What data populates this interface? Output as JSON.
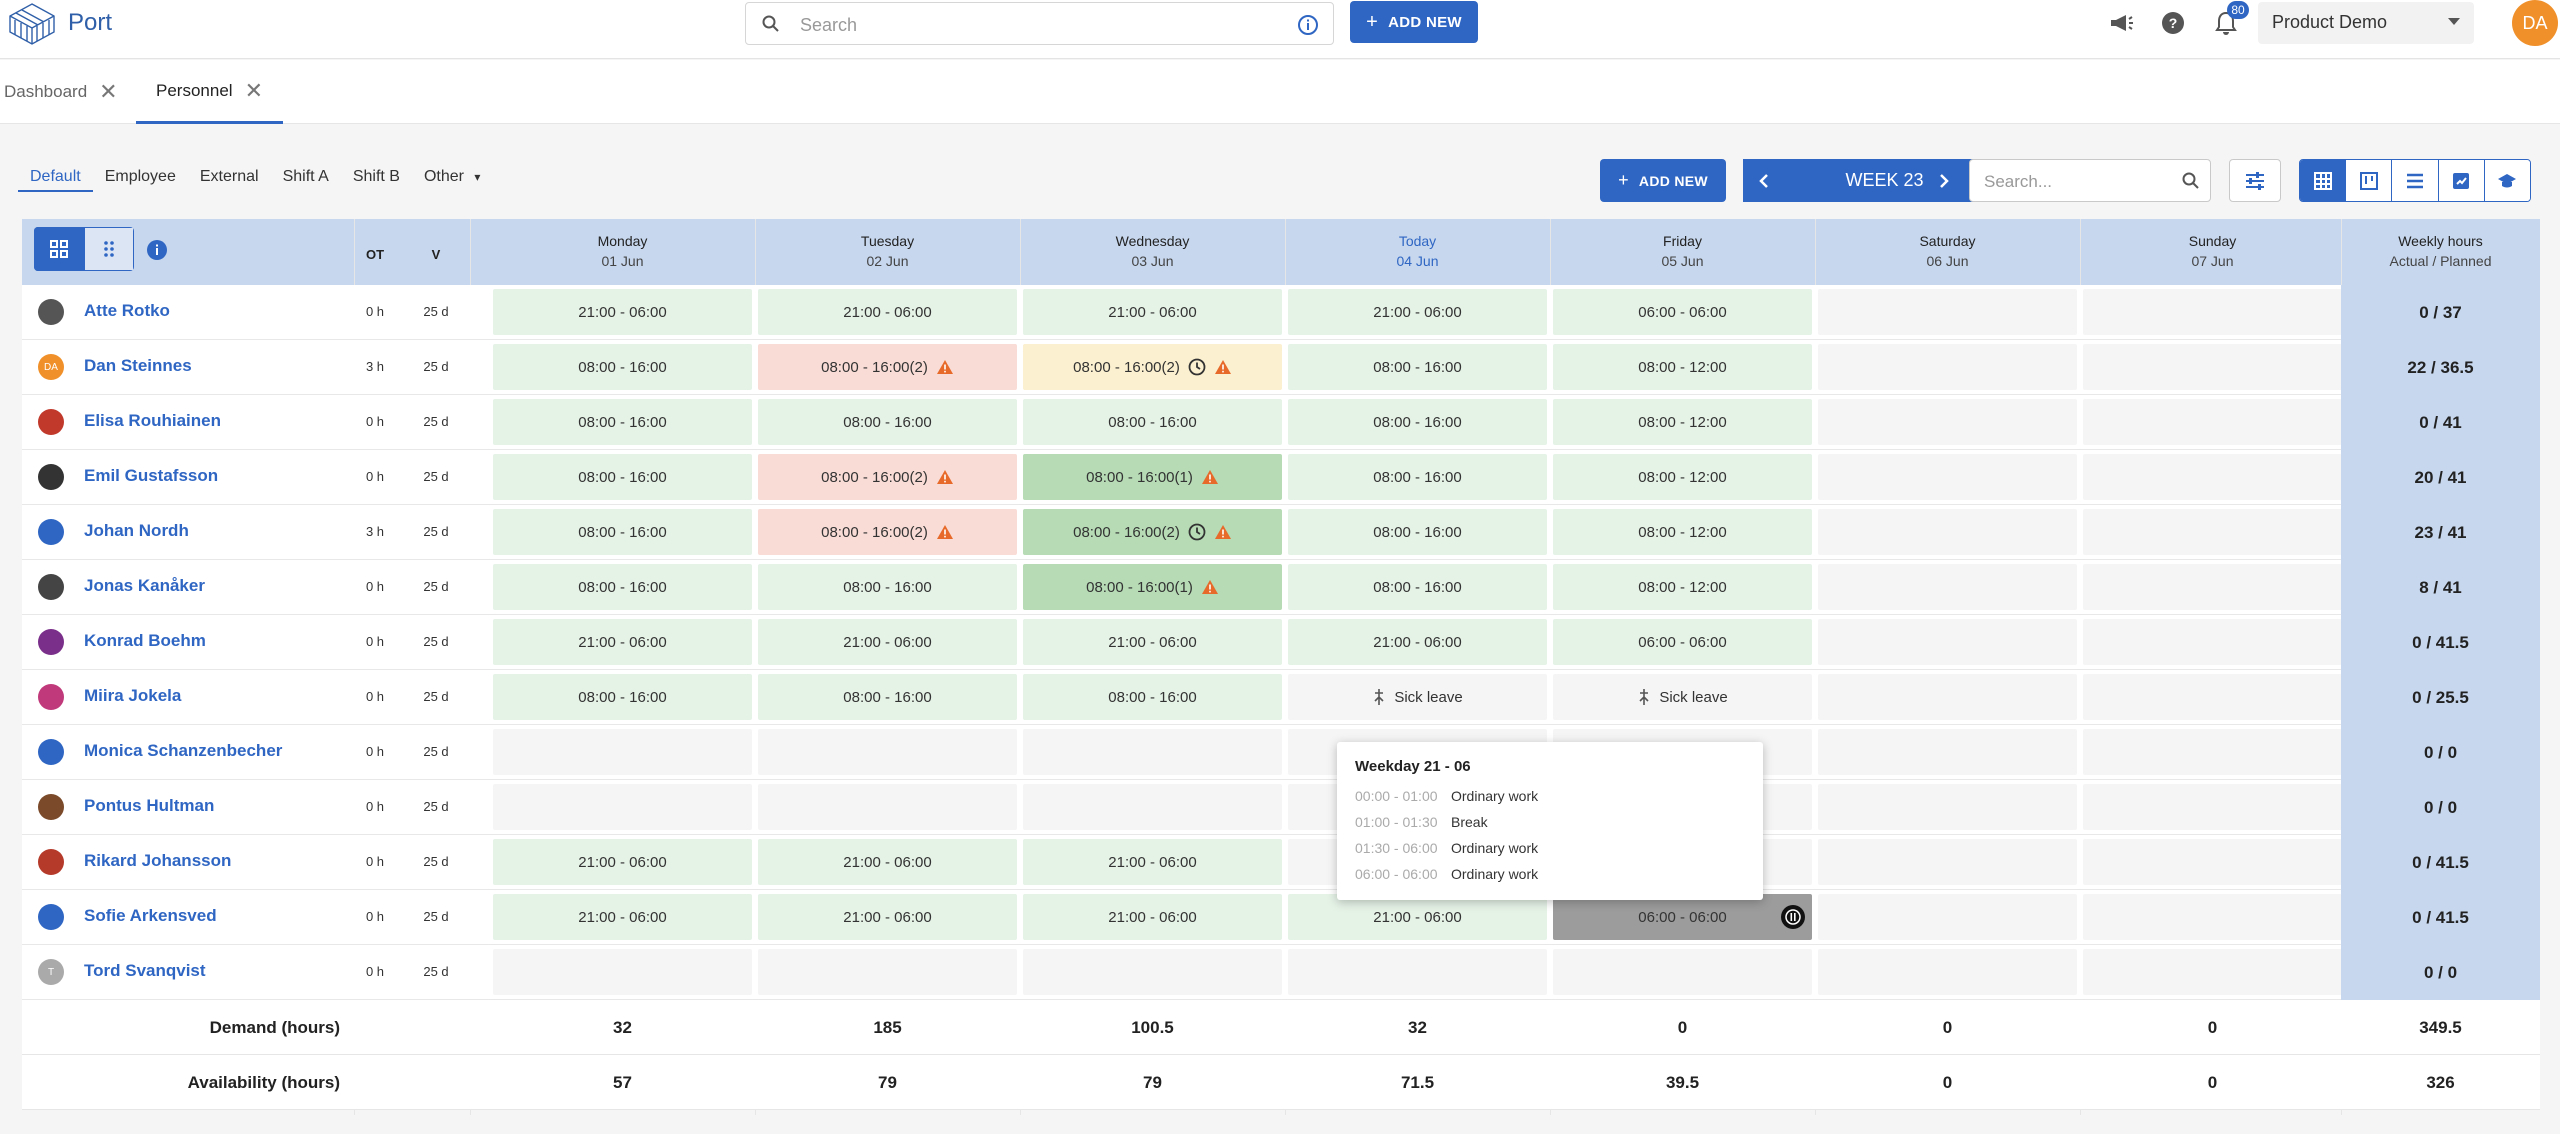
{
  "app": {
    "brand": "Port",
    "search_placeholder": "Search",
    "add_new": "ADD NEW",
    "notifications": "80",
    "product": "Product Demo",
    "user_initials": "DA"
  },
  "tabs": [
    {
      "label": "Dashboard"
    },
    {
      "label": "Personnel"
    }
  ],
  "filters": [
    "Default",
    "Employee",
    "External",
    "Shift A",
    "Shift B",
    "Other"
  ],
  "toolbar": {
    "add_new": "ADD NEW",
    "week": "WEEK 23",
    "search_placeholder": "Search..."
  },
  "header": {
    "ot": "OT",
    "v": "V",
    "days": [
      {
        "name": "Monday",
        "date": "01 Jun"
      },
      {
        "name": "Tuesday",
        "date": "02 Jun"
      },
      {
        "name": "Wednesday",
        "date": "03 Jun"
      },
      {
        "name": "Today",
        "date": "04 Jun"
      },
      {
        "name": "Friday",
        "date": "05 Jun"
      },
      {
        "name": "Saturday",
        "date": "06 Jun"
      },
      {
        "name": "Sunday",
        "date": "07 Jun"
      }
    ],
    "weekly_title": "Weekly hours",
    "weekly_sub": "Actual / Planned"
  },
  "rows": [
    {
      "name": "Atte Rotko",
      "ot": "0 h",
      "v": "25 d",
      "weekly": "0 / 37",
      "cells": [
        "21:00 - 06:00",
        "21:00 - 06:00",
        "21:00 - 06:00",
        "21:00 - 06:00",
        "06:00 - 06:00",
        "",
        ""
      ]
    },
    {
      "name": "Dan Steinnes",
      "ot": "3 h",
      "v": "25 d",
      "weekly": "22 / 36.5",
      "cells": [
        "08:00 - 16:00",
        "08:00 - 16:00(2)",
        "08:00 - 16:00(2)",
        "08:00 - 16:00",
        "08:00 - 12:00",
        "",
        ""
      ]
    },
    {
      "name": "Elisa Rouhiainen",
      "ot": "0 h",
      "v": "25 d",
      "weekly": "0 / 41",
      "cells": [
        "08:00 - 16:00",
        "08:00 - 16:00",
        "08:00 - 16:00",
        "08:00 - 16:00",
        "08:00 - 12:00",
        "",
        ""
      ]
    },
    {
      "name": "Emil Gustafsson",
      "ot": "0 h",
      "v": "25 d",
      "weekly": "20 / 41",
      "cells": [
        "08:00 - 16:00",
        "08:00 - 16:00(2)",
        "08:00 - 16:00(1)",
        "08:00 - 16:00",
        "08:00 - 12:00",
        "",
        ""
      ]
    },
    {
      "name": "Johan Nordh",
      "ot": "3 h",
      "v": "25 d",
      "weekly": "23 / 41",
      "cells": [
        "08:00 - 16:00",
        "08:00 - 16:00(2)",
        "08:00 - 16:00(2)",
        "08:00 - 16:00",
        "08:00 - 12:00",
        "",
        ""
      ]
    },
    {
      "name": "Jonas Kanåker",
      "ot": "0 h",
      "v": "25 d",
      "weekly": "8 / 41",
      "cells": [
        "08:00 - 16:00",
        "08:00 - 16:00",
        "08:00 - 16:00(1)",
        "08:00 - 16:00",
        "08:00 - 12:00",
        "",
        ""
      ]
    },
    {
      "name": "Konrad Boehm",
      "ot": "0 h",
      "v": "25 d",
      "weekly": "0 / 41.5",
      "cells": [
        "21:00 - 06:00",
        "21:00 - 06:00",
        "21:00 - 06:00",
        "21:00 - 06:00",
        "06:00 - 06:00",
        "",
        ""
      ]
    },
    {
      "name": "Miira Jokela",
      "ot": "0 h",
      "v": "25 d",
      "weekly": "0 / 25.5",
      "cells": [
        "08:00 - 16:00",
        "08:00 - 16:00",
        "08:00 - 16:00",
        "Sick leave",
        "Sick leave",
        "",
        ""
      ]
    },
    {
      "name": "Monica Schanzenbecher",
      "ot": "0 h",
      "v": "25 d",
      "weekly": "0 / 0",
      "cells": [
        "",
        "",
        "",
        "",
        "",
        "",
        ""
      ]
    },
    {
      "name": "Pontus Hultman",
      "ot": "0 h",
      "v": "25 d",
      "weekly": "0 / 0",
      "cells": [
        "",
        "",
        "",
        "",
        "",
        "",
        ""
      ]
    },
    {
      "name": "Rikard Johansson",
      "ot": "0 h",
      "v": "25 d",
      "weekly": "0 / 41.5",
      "cells": [
        "21:00 - 06:00",
        "21:00 - 06:00",
        "21:00 - 06:00",
        "",
        "",
        "",
        ""
      ]
    },
    {
      "name": "Sofie Arkensved",
      "ot": "0 h",
      "v": "25 d",
      "weekly": "0 / 41.5",
      "cells": [
        "21:00 - 06:00",
        "21:00 - 06:00",
        "21:00 - 06:00",
        "21:00 - 06:00",
        "06:00 - 06:00",
        "",
        ""
      ]
    },
    {
      "name": "Tord Svanqvist",
      "ot": "0 h",
      "v": "25 d",
      "weekly": "0 / 0",
      "cells": [
        "",
        "",
        "",
        "",
        "",
        "",
        ""
      ]
    }
  ],
  "footer": {
    "demand_label": "Demand (hours)",
    "demand": [
      "32",
      "185",
      "100.5",
      "32",
      "0",
      "0",
      "0",
      "349.5"
    ],
    "availability_label": "Availability (hours)",
    "availability": [
      "57",
      "79",
      "79",
      "71.5",
      "39.5",
      "0",
      "0",
      "326"
    ]
  },
  "tooltip": {
    "title": "Weekday 21 - 06",
    "lines": [
      {
        "time": "00:00 - 01:00",
        "kind": "Ordinary work"
      },
      {
        "time": "01:00 - 01:30",
        "kind": "Break"
      },
      {
        "time": "01:30 - 06:00",
        "kind": "Ordinary work"
      },
      {
        "time": "06:00 - 06:00",
        "kind": "Ordinary work"
      }
    ]
  }
}
